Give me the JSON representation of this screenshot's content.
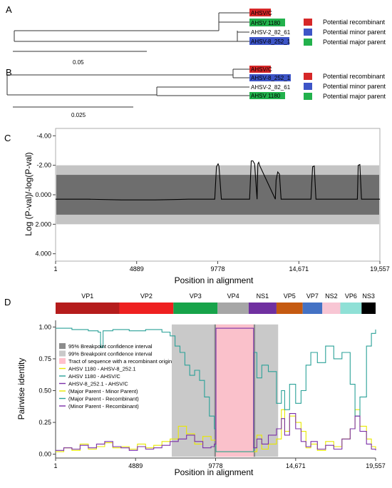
{
  "panels": {
    "A": {
      "label": "A",
      "leaves": [
        "AHSV/C",
        "AHSV 1180",
        "AHSV-2_82_61",
        "AHSV-8_252_1"
      ],
      "leaf_colors": [
        "#d62728",
        "#22b14c",
        "",
        "#3d55c7"
      ],
      "scale_label": "0.05"
    },
    "B": {
      "label": "B",
      "leaves": [
        "AHSV/C",
        "AHSV-8_252_1",
        "AHSV-2_82_61",
        "AHSV 1180"
      ],
      "leaf_colors": [
        "#d62728",
        "#3d55c7",
        "",
        "#22b14c"
      ],
      "scale_label": "0.025"
    },
    "legend_tree": [
      {
        "label": "Potential recombinant",
        "color": "#d62728"
      },
      {
        "label": "Potential minor parent",
        "color": "#3d55c7"
      },
      {
        "label": "Potential major parent",
        "color": "#22b14c"
      }
    ],
    "C": {
      "label": "C"
    },
    "D": {
      "label": "D"
    }
  },
  "chart_data": [
    {
      "type": "line",
      "panel": "C",
      "ylabel": "Log (P-val)/-log(P-val)",
      "xlabel": "Position in alignment",
      "x_ticks": [
        "1",
        "4889",
        "9778",
        "14,671",
        "19,557"
      ],
      "x_tick_values": [
        1,
        4889,
        9778,
        14671,
        19557
      ],
      "y_ticks": [
        "-4.00",
        "-2.00",
        "0.000",
        "2.000",
        "4.000"
      ],
      "y_tick_values": [
        -4,
        -2,
        0,
        2,
        4
      ],
      "ylim": [
        -4.5,
        4.5
      ],
      "xlim": [
        1,
        19557
      ],
      "bands": [
        {
          "name": "99%",
          "from": -2.0,
          "to": 2.0,
          "color": "#c4c4c4"
        },
        {
          "name": "95%",
          "from": -1.35,
          "to": 1.35,
          "color": "#6e6e6e"
        }
      ],
      "series": [
        {
          "x": [
            1,
            2000,
            4000,
            4889,
            6000,
            8000,
            9600,
            9700,
            9800,
            9850,
            10000,
            11700,
            11800,
            11900,
            12000,
            12150,
            12200,
            12250,
            12300,
            13250,
            13300,
            13400,
            13500,
            13600,
            14671,
            15400,
            15500,
            15600,
            15700,
            18200,
            18250,
            18350,
            18450,
            19557
          ],
          "y": [
            0.3,
            0.3,
            0.35,
            0.35,
            0.35,
            0.3,
            0.3,
            -1.9,
            -2.1,
            -1.95,
            0.3,
            0.3,
            -2.3,
            -2.3,
            -2.1,
            0.3,
            -2.1,
            -2.2,
            -2.0,
            0.3,
            -1.0,
            -1.55,
            -1.4,
            0.3,
            0.3,
            0.3,
            -1.9,
            -1.95,
            0.3,
            0.3,
            -2.0,
            -2.05,
            0.3,
            0.3
          ]
        }
      ]
    },
    {
      "type": "line",
      "panel": "D",
      "ylabel": "Pairwise identity",
      "xlabel": "Position in alignment",
      "x_ticks": [
        "1",
        "4889",
        "9778",
        "14,671",
        "19,557"
      ],
      "x_tick_values": [
        1,
        4889,
        9778,
        14671,
        19557
      ],
      "y_ticks": [
        "0.00",
        "0.25",
        "0.50",
        "0.75",
        "1.00"
      ],
      "y_tick_values": [
        0,
        0.25,
        0.5,
        0.75,
        1.0
      ],
      "ylim": [
        -0.03,
        1.03
      ],
      "xlim": [
        1,
        19557
      ],
      "genes": [
        {
          "name": "VP1",
          "start": 1,
          "end": 3900,
          "color": "#b51c1c"
        },
        {
          "name": "VP2",
          "start": 3900,
          "end": 7200,
          "color": "#ee2020"
        },
        {
          "name": "VP3",
          "start": 7200,
          "end": 9900,
          "color": "#17a34a"
        },
        {
          "name": "VP4",
          "start": 9900,
          "end": 11800,
          "color": "#a6a6a6"
        },
        {
          "name": "NS1",
          "start": 11800,
          "end": 13500,
          "color": "#7030a0"
        },
        {
          "name": "VP5",
          "start": 13500,
          "end": 15100,
          "color": "#c55a11"
        },
        {
          "name": "VP7",
          "start": 15100,
          "end": 16300,
          "color": "#4472c4"
        },
        {
          "name": "NS2",
          "start": 16300,
          "end": 17400,
          "color": "#f8c6d4"
        },
        {
          "name": "VP6",
          "start": 17400,
          "end": 18700,
          "color": "#8fe0d6"
        },
        {
          "name": "NS3",
          "start": 18700,
          "end": 19557,
          "color": "#000000"
        }
      ],
      "regions": [
        {
          "kind": "99ci",
          "from": 7100,
          "to": 13600,
          "color": "#c9c9c9"
        },
        {
          "kind": "95ci",
          "from": 9700,
          "to": 9800,
          "color": "#8c8c8c"
        },
        {
          "kind": "95ci",
          "from": 12100,
          "to": 12200,
          "color": "#8c8c8c"
        },
        {
          "kind": "tract",
          "from": 9800,
          "to": 12100,
          "color": "#ffc0cb"
        }
      ],
      "legend": [
        {
          "label": "95% Breakpoint confidence interval",
          "swatch": "#8c8c8c"
        },
        {
          "label": "99% Breakpoint confidence interval",
          "swatch": "#c9c9c9"
        },
        {
          "label": "Tract of sequence with a recombinant origin",
          "swatch": "#ffc0cb"
        },
        {
          "label": "AHSV 1180 - AHSV-8_252.1",
          "line": "#e8e800"
        },
        {
          "label": "AHSV 1180 - AHSV/C",
          "line": "#2aa198"
        },
        {
          "label": "AHSV-8_252.1 - AHSV/C",
          "line": "#7b2fa8"
        },
        {
          "label": "(Major Parent - Minor Parent)",
          "line": "#e8e800"
        },
        {
          "label": "(Major Parent - Recombinant)",
          "line": "#2aa198"
        },
        {
          "label": "(Minor Parent - Recombinant)",
          "line": "#7b2fa8"
        }
      ],
      "series": [
        {
          "name": "AHSV 1180 - AHSV-8_252.1",
          "color": "#e8e800",
          "x": [
            1,
            500,
            1000,
            1500,
            2000,
            2500,
            3000,
            3500,
            4000,
            4500,
            5000,
            5500,
            6000,
            6500,
            7000,
            7500,
            8000,
            8500,
            9000,
            9500,
            9800,
            10000,
            11000,
            12000,
            12300,
            12600,
            13000,
            13500,
            13800,
            14000,
            14300,
            14671,
            15000,
            15300,
            15600,
            16000,
            16500,
            17000,
            17500,
            18000,
            18300,
            18600,
            19000,
            19300,
            19557
          ],
          "y": [
            0.02,
            0.05,
            0.03,
            0.08,
            0.04,
            0.06,
            0.09,
            0.05,
            0.06,
            0.04,
            0.08,
            0.05,
            0.07,
            0.1,
            0.12,
            0.22,
            0.16,
            0.08,
            0.14,
            0.11,
            0.02,
            0.02,
            0.02,
            0.02,
            0.15,
            0.04,
            0.08,
            0.12,
            0.35,
            0.18,
            0.3,
            0.25,
            0.18,
            0.05,
            0.08,
            0.03,
            0.1,
            0.06,
            0.12,
            0.2,
            0.35,
            0.22,
            0.12,
            0.06,
            0.04
          ]
        },
        {
          "name": "AHSV 1180 - AHSV/C",
          "color": "#2aa198",
          "x": [
            1,
            1000,
            2000,
            2600,
            2750,
            2900,
            3500,
            4500,
            5500,
            6500,
            7000,
            7300,
            7600,
            7900,
            8200,
            8500,
            8800,
            9100,
            9400,
            9700,
            9800,
            10000,
            11000,
            12000,
            12100,
            12300,
            12600,
            13000,
            13500,
            13800,
            14000,
            14300,
            14671,
            15000,
            15300,
            15600,
            16000,
            16500,
            17000,
            17500,
            18000,
            18300,
            18600,
            19000,
            19300,
            19557
          ],
          "y": [
            0.99,
            0.98,
            0.97,
            0.96,
            0.84,
            0.97,
            0.98,
            0.97,
            0.98,
            0.96,
            0.93,
            0.85,
            0.8,
            0.7,
            0.62,
            0.66,
            0.58,
            0.45,
            0.3,
            0.2,
            0.02,
            0.02,
            0.02,
            0.02,
            0.8,
            0.6,
            0.7,
            0.65,
            0.4,
            0.5,
            0.35,
            0.55,
            0.4,
            0.5,
            0.7,
            0.8,
            0.72,
            0.85,
            0.75,
            0.8,
            0.55,
            0.3,
            0.45,
            0.85,
            0.95,
            0.98
          ]
        },
        {
          "name": "AHSV-8_252.1 - AHSV/C",
          "color": "#7b2fa8",
          "x": [
            1,
            500,
            1000,
            1500,
            2000,
            2500,
            3000,
            3500,
            4000,
            4500,
            5000,
            5500,
            6000,
            6500,
            7000,
            7500,
            8000,
            8500,
            9000,
            9500,
            9700,
            9800,
            10000,
            11000,
            12000,
            12100,
            12300,
            12600,
            13000,
            13500,
            13800,
            14000,
            14300,
            14671,
            15000,
            15300,
            15600,
            16000,
            16500,
            17000,
            17500,
            18000,
            18300,
            18600,
            19000,
            19300,
            19557
          ],
          "y": [
            0.03,
            0.05,
            0.04,
            0.07,
            0.05,
            0.08,
            0.1,
            0.06,
            0.05,
            0.03,
            0.06,
            0.04,
            0.05,
            0.07,
            0.1,
            0.12,
            0.15,
            0.1,
            0.05,
            0.06,
            0.08,
            0.99,
            0.99,
            0.99,
            0.99,
            0.05,
            0.12,
            0.08,
            0.15,
            0.2,
            0.28,
            0.15,
            0.32,
            0.2,
            0.1,
            0.06,
            0.1,
            0.04,
            0.07,
            0.04,
            0.12,
            0.2,
            0.3,
            0.18,
            0.08,
            0.04,
            0.03
          ]
        }
      ]
    }
  ]
}
